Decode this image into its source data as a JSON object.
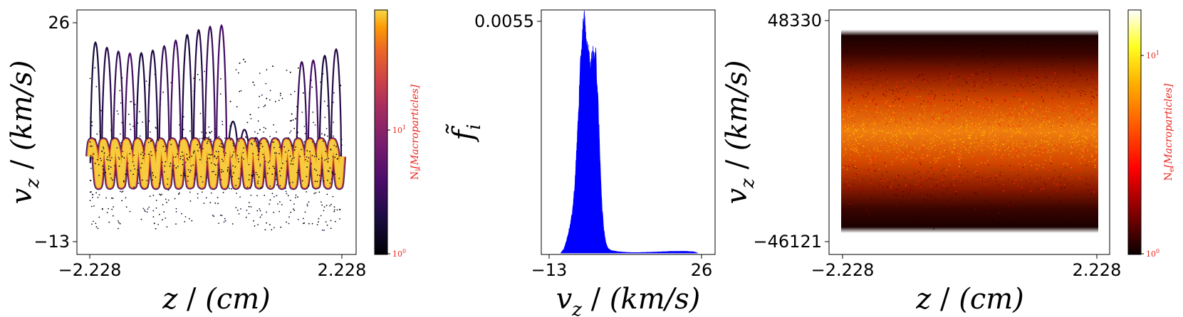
{
  "chart_data": [
    {
      "type": "scatter",
      "colormap": "inferno",
      "xlim": [
        -2.228,
        2.228
      ],
      "ylim": [
        -13,
        26
      ],
      "x_ticks": [
        "−2.228",
        "2.228"
      ],
      "y_ticks": [
        "−13",
        "26"
      ],
      "xlabel": {
        "symbol": "z",
        "unit": "(cm)"
      },
      "ylabel": {
        "symbol": "v",
        "sub": "z",
        "unit": "(km/s)"
      },
      "colorbar": {
        "scale": "log",
        "range": [
          1,
          60
        ],
        "ticks": [
          {
            "base": "10",
            "exp": "0"
          },
          {
            "base": "10",
            "exp": "1"
          }
        ],
        "label": {
          "sym": "N",
          "sub": "i",
          "rest": "[Macroparticles]"
        },
        "label_color": "#e8241c"
      }
    },
    {
      "type": "area",
      "color": "#0000ff",
      "xlim": [
        -13,
        26
      ],
      "ylim": [
        0,
        0.0055
      ],
      "x_ticks": [
        "−13",
        "26"
      ],
      "y_ticks": [
        "0.0055"
      ],
      "xlabel": {
        "symbol": "v",
        "sub": "z",
        "unit": "(km/s)"
      },
      "ylabel": {
        "symbol": "f̃",
        "sub": "i"
      },
      "x": [
        -10,
        -9.2,
        -8.5,
        -8.0,
        -7.5,
        -7.0,
        -6.5,
        -6.0,
        -5.5,
        -5.0,
        -4.5,
        -4.0,
        -3.5,
        -3.0,
        -2.5,
        -2.0,
        -1.5,
        -1.0,
        -0.5,
        0.0,
        0.5,
        1.0,
        1.5,
        2.0,
        2.5,
        3.0,
        4.0,
        6.0,
        8.0,
        10.0,
        13.0,
        16.0,
        19.0,
        22.0,
        24.0,
        25.0
      ],
      "y": [
        0,
        0.0001,
        0.0003,
        0.0005,
        0.0007,
        0.001,
        0.0015,
        0.0023,
        0.0033,
        0.0043,
        0.0052,
        0.0055,
        0.0049,
        0.0047,
        0.0044,
        0.0046,
        0.0047,
        0.0046,
        0.0035,
        0.0023,
        0.0011,
        0.00055,
        0.00025,
        0.00012,
        8e-05,
        6e-05,
        4e-05,
        2e-05,
        1e-05,
        1e-05,
        2e-05,
        3e-05,
        4e-05,
        4e-05,
        3e-05,
        0
      ]
    },
    {
      "type": "scatter",
      "colormap": "hot",
      "xlim": [
        -2.228,
        2.228
      ],
      "ylim": [
        -46121,
        48330
      ],
      "x_ticks": [
        "−2.228",
        "2.228"
      ],
      "y_ticks": [
        "−46121",
        "48330"
      ],
      "xlabel": {
        "symbol": "z",
        "unit": "(cm)"
      },
      "ylabel": {
        "symbol": "v",
        "sub": "z",
        "unit": "(km/s)"
      },
      "colorbar": {
        "scale": "log",
        "range": [
          1,
          20
        ],
        "ticks": [
          {
            "base": "10",
            "exp": "0"
          },
          {
            "base": "10",
            "exp": "1"
          }
        ],
        "label": {
          "sym": "N",
          "sub": "e",
          "rest": "[Macroparticles]"
        },
        "label_color": "#e8241c"
      }
    }
  ]
}
